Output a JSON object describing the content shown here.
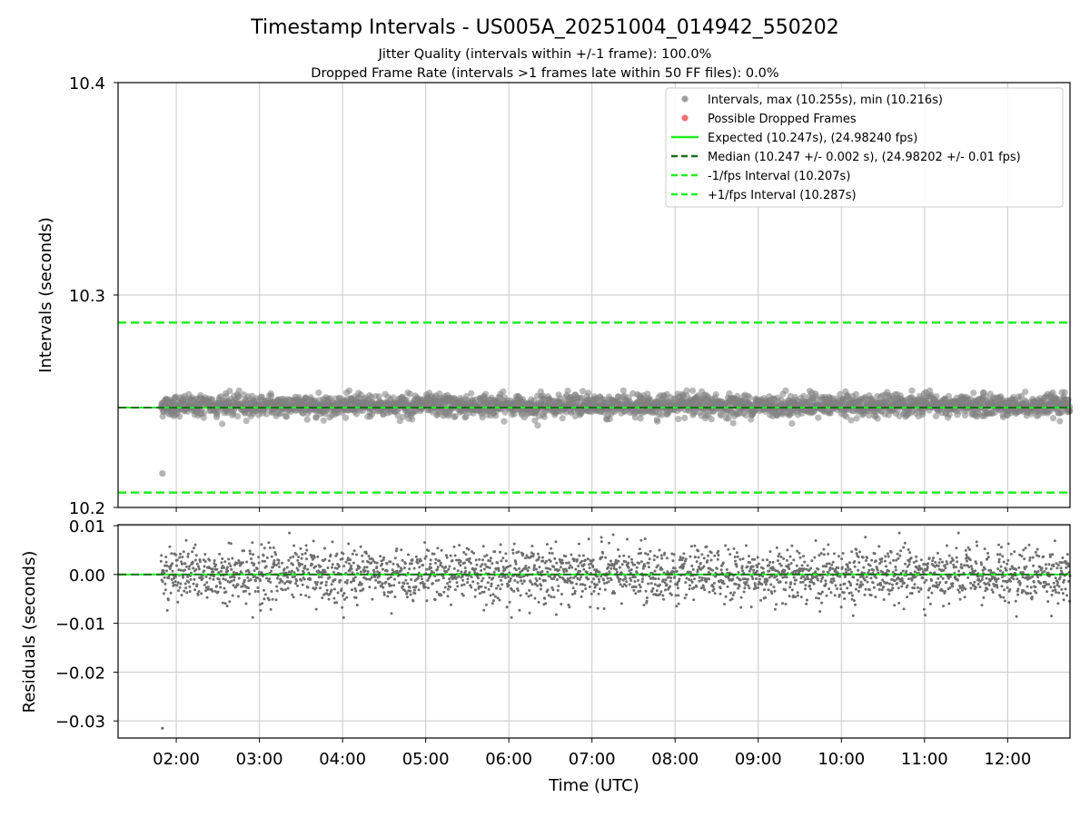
{
  "chart_data": [
    {
      "type": "scatter",
      "panel": "intervals",
      "title": "Timestamp Intervals - US005A_20251004_014942_550202",
      "subtitle_lines": [
        "Jitter Quality (intervals within +/-1 frame): 100.0%",
        "Dropped Frame Rate (intervals >1 frames late within 50 FF files): 0.0%"
      ],
      "ylabel": "Intervals (seconds)",
      "ylim": [
        10.2,
        10.4
      ],
      "yticks": [
        10.2,
        10.3,
        10.4
      ],
      "ytick_labels": [
        "10.2",
        "10.3",
        "10.4"
      ],
      "grid": true,
      "legend_placement": "top-right",
      "legend": [
        {
          "label": "Intervals, max (10.255s), min (10.216s)",
          "kind": "marker",
          "color": "#a0a0a0"
        },
        {
          "label": "Possible Dropped Frames",
          "kind": "marker",
          "color": "#f07070"
        },
        {
          "label": "Expected (10.247s), (24.98240 fps)",
          "kind": "line-solid",
          "color": "#22ee22"
        },
        {
          "label": "Median (10.247 +/- 0.002 s), (24.98202 +/- 0.01 fps)",
          "kind": "line-dashed",
          "color": "#1a6e1a"
        },
        {
          "label": "-1/fps Interval (10.207s)",
          "kind": "line-dashed",
          "color": "#22ee22"
        },
        {
          "label": "+1/fps Interval (10.287s)",
          "kind": "line-dashed",
          "color": "#22ee22"
        }
      ],
      "reference_lines": {
        "expected": 10.247,
        "median": 10.247,
        "minus_1_fps": 10.207,
        "plus_1_fps": 10.287
      },
      "series_summary": {
        "max": 10.255,
        "min": 10.216,
        "center": 10.248,
        "spread_std": 0.0025,
        "outlier": {
          "x": "01:50",
          "y": 10.216
        }
      }
    },
    {
      "type": "scatter",
      "panel": "residuals",
      "ylabel": "Residuals (seconds)",
      "xlabel": "Time (UTC)",
      "ylim": [
        -0.0335,
        0.0102
      ],
      "yticks": [
        0.01,
        0.0,
        -0.01,
        -0.02,
        -0.03
      ],
      "ytick_labels": [
        "0.01",
        "0.00",
        "−0.01",
        "−0.02",
        "−0.03"
      ],
      "grid": true,
      "series_summary": {
        "center": 0.0,
        "spread_std": 0.0028,
        "outlier": {
          "x": "01:50",
          "y": -0.0315
        }
      }
    }
  ],
  "x_axis": {
    "range": [
      "01:18",
      "12:45"
    ],
    "data_start": "01:49",
    "ticks": [
      "02:00",
      "03:00",
      "04:00",
      "05:00",
      "06:00",
      "07:00",
      "08:00",
      "09:00",
      "10:00",
      "11:00",
      "12:00"
    ]
  },
  "colors": {
    "points": "#808080",
    "expected": "#22ee22",
    "median": "#1a6e1a",
    "fps_interval": "#22ee22",
    "grid": "#c8c8c8"
  }
}
